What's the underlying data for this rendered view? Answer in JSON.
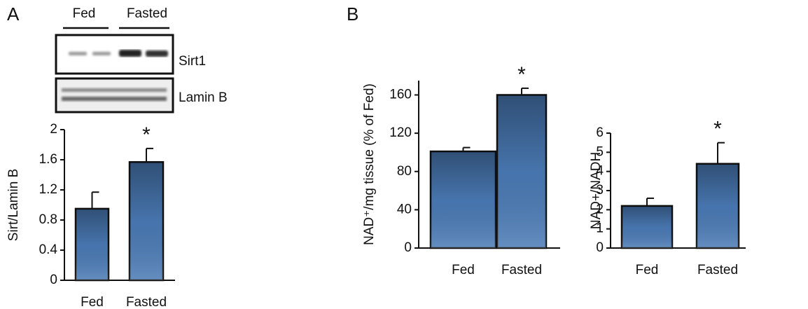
{
  "panels": [
    "A",
    "B"
  ],
  "blot": {
    "groups": [
      "Fed",
      "Fasted"
    ],
    "bands": [
      "Sirt1",
      "Lamin B"
    ]
  },
  "chart_data": [
    {
      "type": "bar",
      "ylabel": "Sirt/Lamin B",
      "categories": [
        "Fed",
        "Fasted"
      ],
      "values": [
        0.95,
        1.57
      ],
      "errors": [
        0.22,
        0.18
      ],
      "color": "#4a7ab5",
      "ylim": [
        0,
        2
      ],
      "yticks": [
        0,
        0.4,
        0.8,
        1.2,
        1.6,
        2
      ],
      "annotations": [
        {
          "x": "Fasted",
          "text": "*"
        }
      ]
    },
    {
      "type": "bar",
      "ylabel": "NAD⁺/mg tissue (% of Fed)",
      "categories": [
        "Fed",
        "Fasted"
      ],
      "values": [
        101,
        160
      ],
      "errors": [
        4,
        7
      ],
      "color": "#4a7ab5",
      "ylim": [
        0,
        175
      ],
      "yticks": [
        0,
        40,
        80,
        120,
        160
      ],
      "annotations": [
        {
          "x": "Fasted",
          "text": "*"
        }
      ]
    },
    {
      "type": "bar",
      "ylabel": "NAD+/NADH",
      "categories": [
        "Fed",
        "Fasted"
      ],
      "values": [
        2.2,
        4.4
      ],
      "errors": [
        0.4,
        1.1
      ],
      "color": "#4a7ab5",
      "ylim": [
        0,
        6
      ],
      "yticks": [
        0,
        1,
        2,
        3,
        4,
        5,
        6
      ],
      "annotations": [
        {
          "x": "Fasted",
          "text": "*"
        }
      ]
    }
  ]
}
